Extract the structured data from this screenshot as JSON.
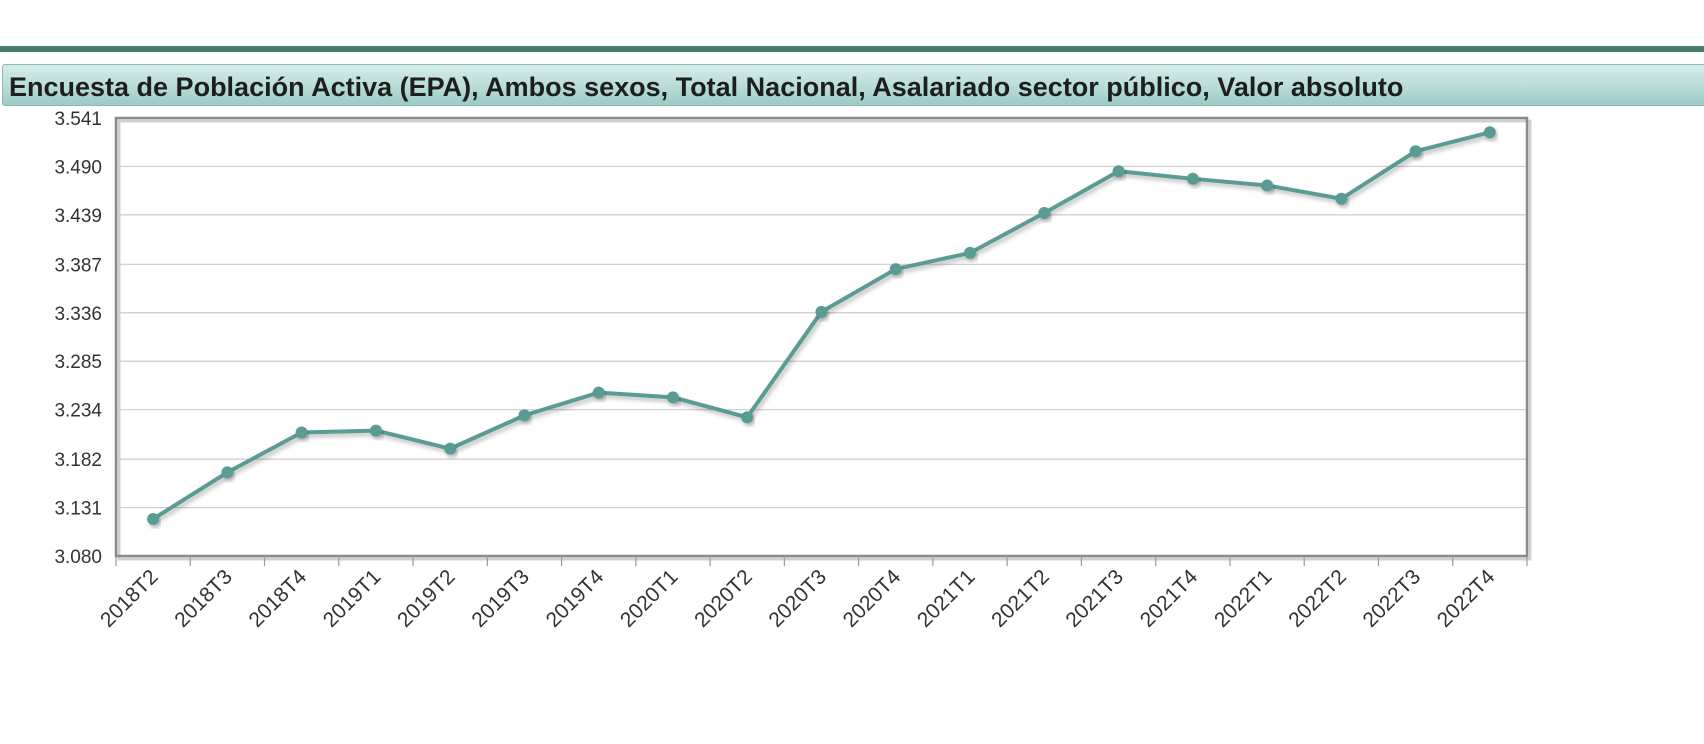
{
  "chart_data": {
    "type": "line",
    "title": "Encuesta de Población Activa (EPA), Ambos sexos, Total Nacional, Asalariado sector público, Valor absoluto",
    "categories": [
      "2018T2",
      "2018T3",
      "2018T4",
      "2019T1",
      "2019T2",
      "2019T3",
      "2019T4",
      "2020T1",
      "2020T2",
      "2020T3",
      "2020T4",
      "2021T1",
      "2021T2",
      "2021T3",
      "2021T4",
      "2022T1",
      "2022T2",
      "2022T3",
      "2022T4"
    ],
    "series": [
      {
        "values": [
          3119,
          3168,
          3210,
          3212,
          3193,
          3228,
          3252,
          3247,
          3226,
          3337,
          3382,
          3399,
          3441,
          3485,
          3477,
          3470,
          3456,
          3506,
          3526
        ]
      }
    ],
    "ylim": [
      3.08,
      3.541
    ],
    "yticks": [
      "3.080",
      "3.131",
      "3.182",
      "3.234",
      "3.285",
      "3.336",
      "3.387",
      "3.439",
      "3.490",
      "3.541"
    ],
    "ytick_values": [
      3080,
      3131,
      3182,
      3234,
      3285,
      3336,
      3387,
      3439,
      3490,
      3541
    ],
    "grid": true,
    "legend": "none",
    "colors": {
      "line": "#5a9b94",
      "grid": "#cccccc",
      "frame": "#8a8a8a"
    }
  }
}
